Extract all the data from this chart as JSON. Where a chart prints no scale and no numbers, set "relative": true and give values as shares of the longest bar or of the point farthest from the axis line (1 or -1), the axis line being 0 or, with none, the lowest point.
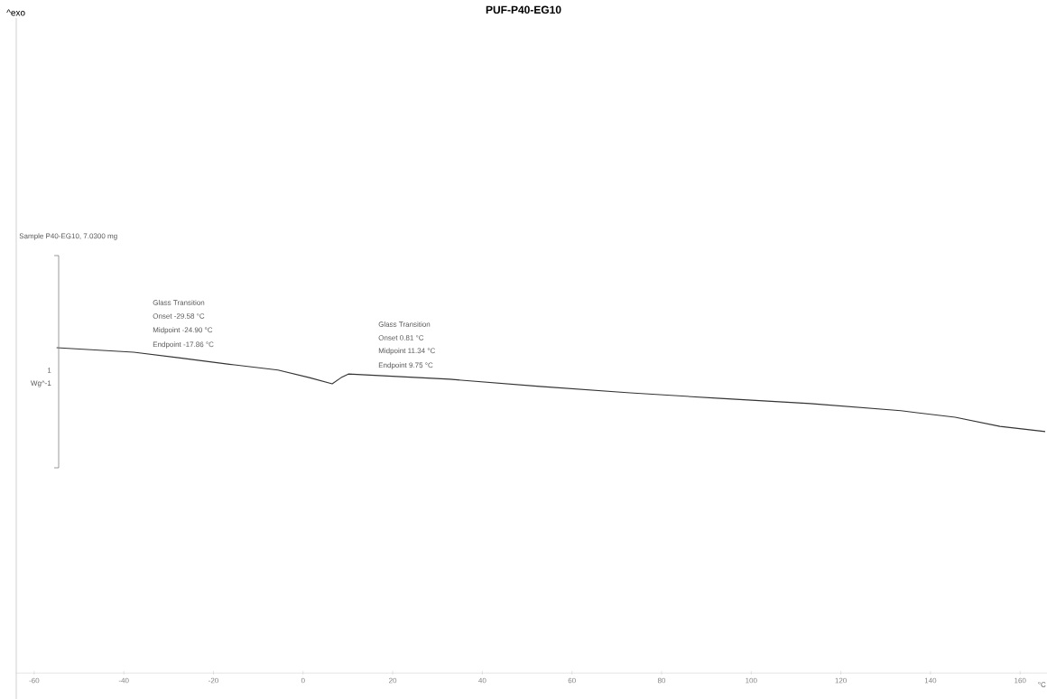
{
  "chart_data": {
    "type": "line",
    "title": "PUF-P40-EG10",
    "relative": true,
    "x": [
      -55,
      -37.8,
      -27.8,
      -15.3,
      -5.6,
      1.4,
      6.5,
      8.5,
      10.1,
      32.7,
      52.8,
      73,
      93.1,
      113.2,
      133.4,
      145.5,
      155.5,
      165.6
    ],
    "values": [
      1.0,
      0.986,
      0.969,
      0.947,
      0.931,
      0.908,
      0.889,
      0.908,
      0.919,
      0.903,
      0.881,
      0.861,
      0.844,
      0.828,
      0.806,
      0.786,
      0.758,
      0.742
    ],
    "color": "#333333",
    "xlim": [
      -64,
      166
    ],
    "xticks": [
      -60,
      -40,
      -20,
      0,
      20,
      40,
      60,
      80,
      100,
      120,
      140,
      160
    ],
    "annotations": [
      "^exo",
      "Sample P40-EG10, 7.0300 mg",
      "Glass Transition",
      "Onset -29.58 °C",
      "Midpoint -24.90 °C",
      "Endpoint -17.86 °C",
      "Glass Transition",
      "Onset 0.81 °C",
      "Midpoint 11.34 °C",
      "Endpoint 9.75 °C",
      "1",
      "Wg^-1",
      "°C"
    ]
  }
}
